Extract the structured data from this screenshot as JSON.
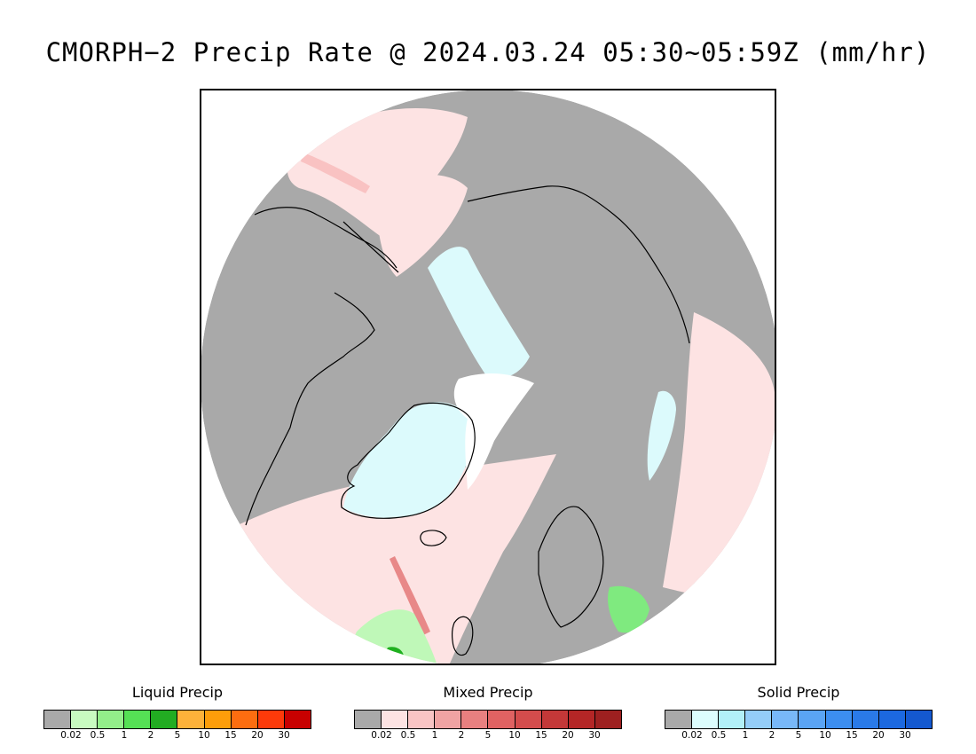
{
  "header": {
    "title": "CMORPH−2 Precip Rate @ 2024.03.24 05:30~05:59Z (mm/hr)"
  },
  "map": {
    "background_color": "#a9a9a9",
    "colors": {
      "mixed_light": "#fde3e3",
      "mixed_mid": "#f9c2c2",
      "mixed_dark": "#e88888",
      "solid_light": "#dcfafc",
      "liquid_light": "#bff8b8",
      "liquid_mid": "#7fea7f",
      "liquid_dark": "#1fb01f",
      "no_data": "#ffffff",
      "coastline": "#000000"
    }
  },
  "legends": [
    {
      "title": "Liquid Precip",
      "colors": [
        "#a9a9a9",
        "#c8fbc0",
        "#93ee8a",
        "#55e055",
        "#22ac22",
        "#fdb23a",
        "#fd9d0a",
        "#fd6d10",
        "#fd3a0a",
        "#c80000"
      ],
      "ticks": [
        "0.02",
        "0.5",
        "1",
        "2",
        "5",
        "10",
        "15",
        "20",
        "30"
      ]
    },
    {
      "title": "Mixed Precip",
      "colors": [
        "#a9a9a9",
        "#fde3e3",
        "#f9c4c4",
        "#f0a3a3",
        "#e88080",
        "#e06262",
        "#d44c4c",
        "#c43838",
        "#b42626",
        "#9e2020"
      ],
      "ticks": [
        "0.02",
        "0.5",
        "1",
        "2",
        "5",
        "10",
        "15",
        "20",
        "30"
      ]
    },
    {
      "title": "Solid Precip",
      "colors": [
        "#a9a9a9",
        "#dcfdfd",
        "#b2f0f8",
        "#94cdf8",
        "#78b8f8",
        "#5aa4f4",
        "#3c8ef0",
        "#2a7ae8",
        "#1c68e0",
        "#1458d0"
      ],
      "ticks": [
        "0.02",
        "0.5",
        "1",
        "2",
        "5",
        "10",
        "15",
        "20",
        "30"
      ]
    }
  ]
}
